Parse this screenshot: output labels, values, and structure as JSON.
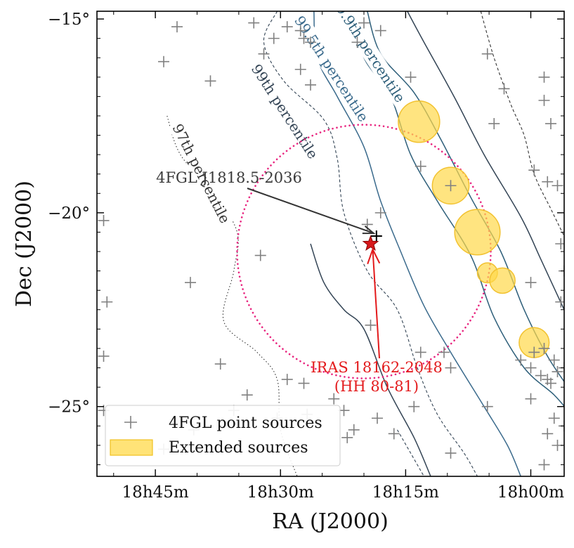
{
  "chart_data": {
    "type": "scatter",
    "xlabel": "RA (J2000)",
    "ylabel": "Dec (J2000)",
    "xlim": [
      283,
      269
    ],
    "ylim": [
      -26.8,
      -14.8
    ],
    "x_ticks": [
      {
        "value": 281.25,
        "label": "18h45m"
      },
      {
        "value": 277.5,
        "label": "18h30m"
      },
      {
        "value": 273.75,
        "label": "18h15m"
      },
      {
        "value": 270.0,
        "label": "18h00m"
      }
    ],
    "y_ticks": [
      {
        "value": -15,
        "label": "−15°"
      },
      {
        "value": -20,
        "label": "−20°"
      },
      {
        "value": -25,
        "label": "−25°"
      }
    ],
    "legend": {
      "placement": "lower-left",
      "entries": [
        {
          "label": "4FGL point sources",
          "marker": "plus",
          "color": "#808080"
        },
        {
          "label": "Extended sources",
          "marker": "filled-circle",
          "color": "#FFD94A"
        }
      ]
    },
    "point_sources": [
      [
        281.0,
        -16.1
      ],
      [
        280.6,
        -15.2
      ],
      [
        279.6,
        -16.6
      ],
      [
        278.3,
        -15.1
      ],
      [
        277.7,
        -15.5
      ],
      [
        277.3,
        -15.2
      ],
      [
        276.9,
        -15.3
      ],
      [
        276.8,
        -15.5
      ],
      [
        276.6,
        -15.6
      ],
      [
        278.0,
        -15.9
      ],
      [
        276.9,
        -16.3
      ],
      [
        276.6,
        -16.7
      ],
      [
        275.2,
        -15.6
      ],
      [
        275.0,
        -15.1
      ],
      [
        274.5,
        -15.3
      ],
      [
        273.6,
        -16.5
      ],
      [
        271.3,
        -15.9
      ],
      [
        270.8,
        -16.8
      ],
      [
        269.6,
        -16.5
      ],
      [
        269.6,
        -17.1
      ],
      [
        269.4,
        -17.7
      ],
      [
        271.1,
        -17.7
      ],
      [
        269.9,
        -18.9
      ],
      [
        269.5,
        -19.2
      ],
      [
        269.2,
        -19.3
      ],
      [
        269.1,
        -20.8
      ],
      [
        273.3,
        -18.8
      ],
      [
        272.4,
        -19.3
      ],
      [
        274.5,
        -20.0
      ],
      [
        274.9,
        -20.3
      ],
      [
        274.8,
        -22.9
      ],
      [
        282.8,
        -20.2
      ],
      [
        282.7,
        -22.3
      ],
      [
        280.2,
        -21.8
      ],
      [
        278.1,
        -21.1
      ],
      [
        270.0,
        -21.8
      ],
      [
        269.0,
        -21.5
      ],
      [
        269.1,
        -22.3
      ],
      [
        273.3,
        -23.6
      ],
      [
        272.6,
        -23.6
      ],
      [
        272.4,
        -24.0
      ],
      [
        270.3,
        -23.8
      ],
      [
        269.9,
        -23.6
      ],
      [
        269.6,
        -23.5
      ],
      [
        269.3,
        -23.8
      ],
      [
        270.0,
        -24.0
      ],
      [
        269.7,
        -24.2
      ],
      [
        269.4,
        -24.4
      ],
      [
        269.2,
        -24.1
      ],
      [
        269.0,
        -24.0
      ],
      [
        270.0,
        -24.8
      ],
      [
        269.5,
        -24.3
      ],
      [
        269.3,
        -25.3
      ],
      [
        269.5,
        -25.7
      ],
      [
        269.0,
        -25.5
      ],
      [
        269.2,
        -26.0
      ],
      [
        269.6,
        -26.5
      ],
      [
        271.3,
        -25.0
      ],
      [
        273.5,
        -25.0
      ],
      [
        274.1,
        -25.7
      ],
      [
        272.4,
        -26.2
      ],
      [
        274.6,
        -25.3
      ],
      [
        279.3,
        -23.9
      ],
      [
        278.5,
        -24.7
      ],
      [
        277.3,
        -24.3
      ],
      [
        276.8,
        -24.4
      ],
      [
        275.9,
        -24.8
      ],
      [
        275.6,
        -25.1
      ],
      [
        275.3,
        -25.6
      ],
      [
        276.7,
        -25.2
      ],
      [
        275.5,
        -25.8
      ],
      [
        277.6,
        -25.3
      ],
      [
        278.9,
        -25.1
      ],
      [
        280.1,
        -25.6
      ],
      [
        281.0,
        -26.1
      ],
      [
        282.8,
        -23.7
      ],
      [
        282.8,
        -25.1
      ]
    ],
    "extended_sources": [
      {
        "ra": 273.35,
        "dec": -17.65,
        "r": 0.62
      },
      {
        "ra": 272.4,
        "dec": -19.3,
        "r": 0.55
      },
      {
        "ra": 271.6,
        "dec": -20.5,
        "r": 0.68
      },
      {
        "ra": 271.3,
        "dec": -21.55,
        "r": 0.3
      },
      {
        "ra": 270.85,
        "dec": -21.75,
        "r": 0.38
      },
      {
        "ra": 269.9,
        "dec": -23.35,
        "r": 0.45
      }
    ],
    "circle": {
      "ra": 275.0,
      "dec": -21.0,
      "r": 3.8,
      "color": "#E8257F",
      "style": "dotted"
    },
    "target_4fgl": {
      "label": "4FGL J1818.5-2036",
      "ra": 274.625,
      "dec": -20.6,
      "color": "#000000"
    },
    "target_iras": {
      "label_line1": "IRAS 18162-2048",
      "label_line2": "(HH 80-81)",
      "ra": 274.8,
      "dec": -20.8,
      "color": "#E31A1C"
    },
    "contours": [
      {
        "label": "97th percentile",
        "color": "#333333",
        "style": "dotted",
        "points": [
          [
            280.9,
            -17.5
          ],
          [
            280.5,
            -18.5
          ],
          [
            279.5,
            -19.5
          ],
          [
            278.8,
            -20.5
          ],
          [
            278.9,
            -21.5
          ],
          [
            279.2,
            -22.8
          ],
          [
            278.2,
            -23.6
          ],
          [
            277.6,
            -24.3
          ],
          [
            277.5,
            -25.6
          ],
          [
            277.0,
            -26.8
          ]
        ]
      },
      {
        "label": "99th percentile",
        "color": "#334455",
        "style": "dashed",
        "points": [
          [
            277.6,
            -14.8
          ],
          [
            278.0,
            -15.6
          ],
          [
            277.4,
            -16.6
          ],
          [
            276.2,
            -17.6
          ],
          [
            275.8,
            -18.6
          ],
          [
            275.6,
            -20.0
          ],
          [
            274.9,
            -21.5
          ],
          [
            274.0,
            -22.5
          ],
          [
            273.4,
            -24.0
          ],
          [
            272.8,
            -25.2
          ],
          [
            272.0,
            -26.2
          ],
          [
            271.6,
            -26.8
          ]
        ]
      },
      {
        "label": "99.5th percentile",
        "color": "#3A6A8C",
        "style": "solid",
        "points": [
          [
            276.5,
            -14.8
          ],
          [
            276.4,
            -16.0
          ],
          [
            275.8,
            -17.0
          ],
          [
            275.0,
            -18.3
          ],
          [
            274.5,
            -19.7
          ],
          [
            273.9,
            -21.0
          ],
          [
            273.2,
            -22.4
          ],
          [
            272.4,
            -23.6
          ],
          [
            271.4,
            -25.0
          ],
          [
            270.7,
            -26.0
          ],
          [
            270.3,
            -26.8
          ]
        ]
      },
      {
        "label": "99.9th percentile",
        "color": "#2E5F7A",
        "style": "solid",
        "points": [
          [
            275.4,
            -14.8
          ],
          [
            275.0,
            -16.0
          ],
          [
            274.2,
            -17.0
          ],
          [
            273.6,
            -18.5
          ],
          [
            272.8,
            -19.7
          ],
          [
            271.8,
            -21.1
          ],
          [
            271.1,
            -22.7
          ],
          [
            270.2,
            -24.0
          ],
          [
            269.3,
            -24.7
          ],
          [
            268.8,
            -25.2
          ]
        ]
      },
      {
        "label": "",
        "color": "#2E5F7A",
        "style": "solid",
        "points": [
          [
            274.9,
            -14.8
          ],
          [
            274.5,
            -15.9
          ],
          [
            273.5,
            -16.9
          ],
          [
            272.7,
            -18.1
          ],
          [
            271.8,
            -19.6
          ],
          [
            270.9,
            -21.0
          ],
          [
            270.2,
            -22.5
          ],
          [
            269.5,
            -23.7
          ],
          [
            268.8,
            -24.6
          ]
        ]
      },
      {
        "label": "",
        "color": "#334455",
        "style": "solid",
        "points": [
          [
            273.7,
            -14.8
          ],
          [
            273.2,
            -15.6
          ],
          [
            272.3,
            -17.0
          ],
          [
            271.4,
            -18.5
          ],
          [
            270.3,
            -20.1
          ],
          [
            269.7,
            -21.2
          ],
          [
            269.0,
            -22.5
          ]
        ]
      },
      {
        "label": "",
        "color": "#333333",
        "style": "dashed",
        "points": [
          [
            271.5,
            -14.8
          ],
          [
            271.1,
            -16.0
          ],
          [
            270.6,
            -17.2
          ],
          [
            270.2,
            -18.0
          ],
          [
            269.9,
            -19.0
          ],
          [
            269.4,
            -19.9
          ],
          [
            269.0,
            -20.6
          ]
        ]
      },
      {
        "label": "",
        "color": "#334455",
        "style": "solid",
        "points": [
          [
            276.6,
            -20.8
          ],
          [
            276.2,
            -21.8
          ],
          [
            275.6,
            -22.5
          ],
          [
            275.0,
            -23.0
          ],
          [
            274.3,
            -24.5
          ],
          [
            273.5,
            -25.8
          ],
          [
            273.0,
            -26.8
          ]
        ]
      },
      {
        "label": "",
        "color": "#334455",
        "style": "dashed",
        "points": [
          [
            274.0,
            -25.6
          ],
          [
            273.6,
            -26.2
          ],
          [
            273.2,
            -26.8
          ]
        ]
      }
    ]
  }
}
